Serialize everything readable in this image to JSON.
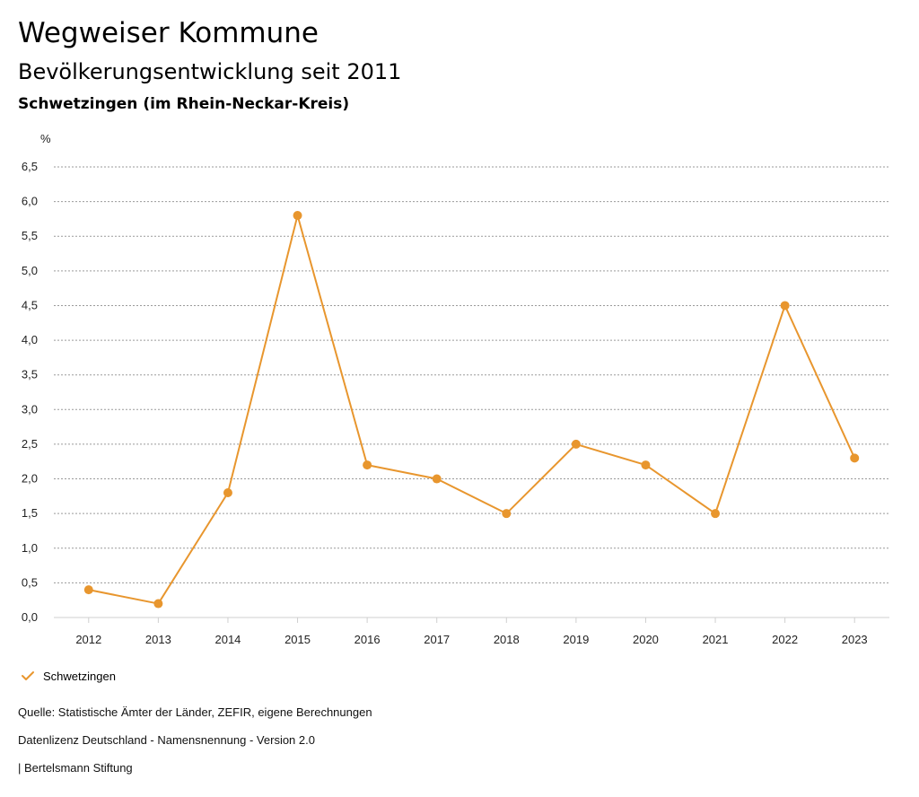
{
  "header": {
    "title": "Wegweiser Kommune",
    "subtitle": "Bevölkerungsentwicklung seit 2011",
    "region": "Schwetzingen (im Rhein-Neckar-Kreis)"
  },
  "chart_data": {
    "type": "line",
    "title": "Bevölkerungsentwicklung seit 2011",
    "ylabel": "%",
    "xlabel": "",
    "ylim": [
      0,
      6.5
    ],
    "yticks": [
      "0,0",
      "0,5",
      "1,0",
      "1,5",
      "2,0",
      "2,5",
      "3,0",
      "3,5",
      "4,0",
      "4,5",
      "5,0",
      "5,5",
      "6,0",
      "6,5"
    ],
    "categories": [
      "2012",
      "2013",
      "2014",
      "2015",
      "2016",
      "2017",
      "2018",
      "2019",
      "2020",
      "2021",
      "2022",
      "2023"
    ],
    "series": [
      {
        "name": "Schwetzingen",
        "values": [
          0.4,
          0.2,
          1.8,
          5.8,
          2.2,
          2.0,
          1.5,
          2.5,
          2.2,
          1.5,
          4.5,
          2.3
        ]
      }
    ],
    "grid": true,
    "legend": "bottom-left"
  },
  "colors": {
    "series": "#E8962E",
    "grid": "#9a9a9a"
  },
  "legend": {
    "label": "Schwetzingen",
    "icon": "check-icon"
  },
  "footer": {
    "source": "Quelle: Statistische Ämter der Länder, ZEFIR, eigene Berechnungen",
    "license": "Datenlizenz Deutschland - Namensnennung - Version 2.0",
    "publisher": "| Bertelsmann Stiftung"
  }
}
